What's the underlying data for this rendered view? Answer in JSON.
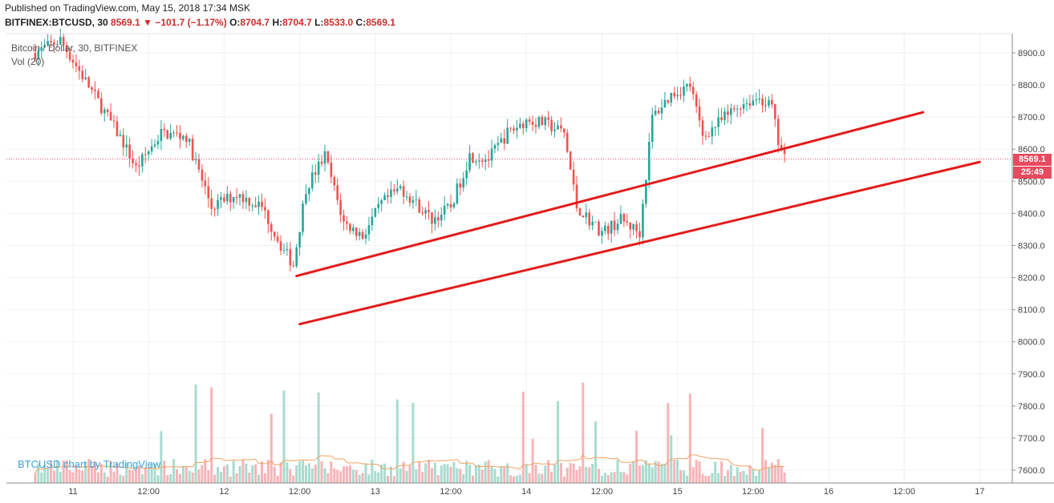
{
  "header": {
    "published": "Published on TradingView.com, May 15, 2018 17:34 MSK",
    "symbol": "BITFINEX:BTCUSD, 30",
    "last": "8569.1",
    "change": "−101.7 (−1.17%)",
    "o_label": "O:",
    "o_value": "8704.7",
    "h_label": "H:",
    "h_value": "8704.7",
    "l_label": "L:",
    "l_value": "8533.0",
    "c_label": "C:",
    "c_value": "8569.1"
  },
  "legend": {
    "title": "Bitcoin / Dollar, 30, BITFINEX",
    "volume": "Vol (20)"
  },
  "watermark": "BTCUSD chart by TradingView",
  "price_tag": {
    "value": "8569.1",
    "countdown": "25:49",
    "color": "#e84a5f"
  },
  "colors": {
    "up": "#26a69a",
    "down": "#ef5350",
    "trendline": "#e31b1b",
    "vol_ma": "#f4a261"
  },
  "chart_data": {
    "type": "line",
    "y_ticks": [
      "8900.0",
      "8800.0",
      "8700.0",
      "8600.0",
      "8500.0",
      "8400.0",
      "8300.0",
      "8200.0",
      "8100.0",
      "8000.0",
      "7900.0",
      "7800.0",
      "7700.0",
      "7600.0"
    ],
    "ylim": [
      7570,
      8960
    ],
    "x_ticks": [
      "11",
      "12:00",
      "12",
      "12:00",
      "13",
      "12:00",
      "14",
      "12:00",
      "15",
      "12:00",
      "16",
      "12:00",
      "17"
    ],
    "price_path": [
      [
        "2018-05-10 18:00",
        8900
      ],
      [
        "2018-05-10 22:00",
        8940
      ],
      [
        "2018-05-11 03:00",
        8780
      ],
      [
        "2018-05-11 08:00",
        8620
      ],
      [
        "2018-05-11 10:00",
        8540
      ],
      [
        "2018-05-11 14:00",
        8650
      ],
      [
        "2018-05-11 18:00",
        8640
      ],
      [
        "2018-05-11 22:00",
        8420
      ],
      [
        "2018-05-12 02:00",
        8460
      ],
      [
        "2018-05-12 06:00",
        8420
      ],
      [
        "2018-05-12 09:00",
        8300
      ],
      [
        "2018-05-12 11:00",
        8240
      ],
      [
        "2018-05-12 13:00",
        8480
      ],
      [
        "2018-05-12 16:00",
        8580
      ],
      [
        "2018-05-12 19:00",
        8370
      ],
      [
        "2018-05-12 22:00",
        8330
      ],
      [
        "2018-05-13 01:00",
        8430
      ],
      [
        "2018-05-13 04:00",
        8480
      ],
      [
        "2018-05-13 09:00",
        8380
      ],
      [
        "2018-05-13 12:00",
        8420
      ],
      [
        "2018-05-13 15:00",
        8580
      ],
      [
        "2018-05-13 18:00",
        8570
      ],
      [
        "2018-05-13 21:00",
        8650
      ],
      [
        "2018-05-14 00:00",
        8690
      ],
      [
        "2018-05-14 03:00",
        8680
      ],
      [
        "2018-05-14 06:00",
        8650
      ],
      [
        "2018-05-14 08:00",
        8420
      ],
      [
        "2018-05-14 12:00",
        8340
      ],
      [
        "2018-05-14 15:00",
        8380
      ],
      [
        "2018-05-14 18:00",
        8340
      ],
      [
        "2018-05-14 20:00",
        8700
      ],
      [
        "2018-05-14 23:00",
        8770
      ],
      [
        "2018-05-15 02:00",
        8800
      ],
      [
        "2018-05-15 04:00",
        8640
      ],
      [
        "2018-05-15 07:00",
        8690
      ],
      [
        "2018-05-15 10:00",
        8740
      ],
      [
        "2018-05-15 13:00",
        8760
      ],
      [
        "2018-05-15 15:00",
        8730
      ],
      [
        "2018-05-15 16:00",
        8620
      ],
      [
        "2018-05-15 17:00",
        8569.1
      ]
    ],
    "trendlines": [
      {
        "from": [
          "2018-05-12 11:30",
          8205
        ],
        "to": [
          "2018-05-16 15:00",
          8715
        ]
      },
      {
        "from": [
          "2018-05-12 12:00",
          8055
        ],
        "to": [
          "2018-05-17 00:00",
          8560
        ]
      }
    ],
    "last_price": 8569.1
  }
}
